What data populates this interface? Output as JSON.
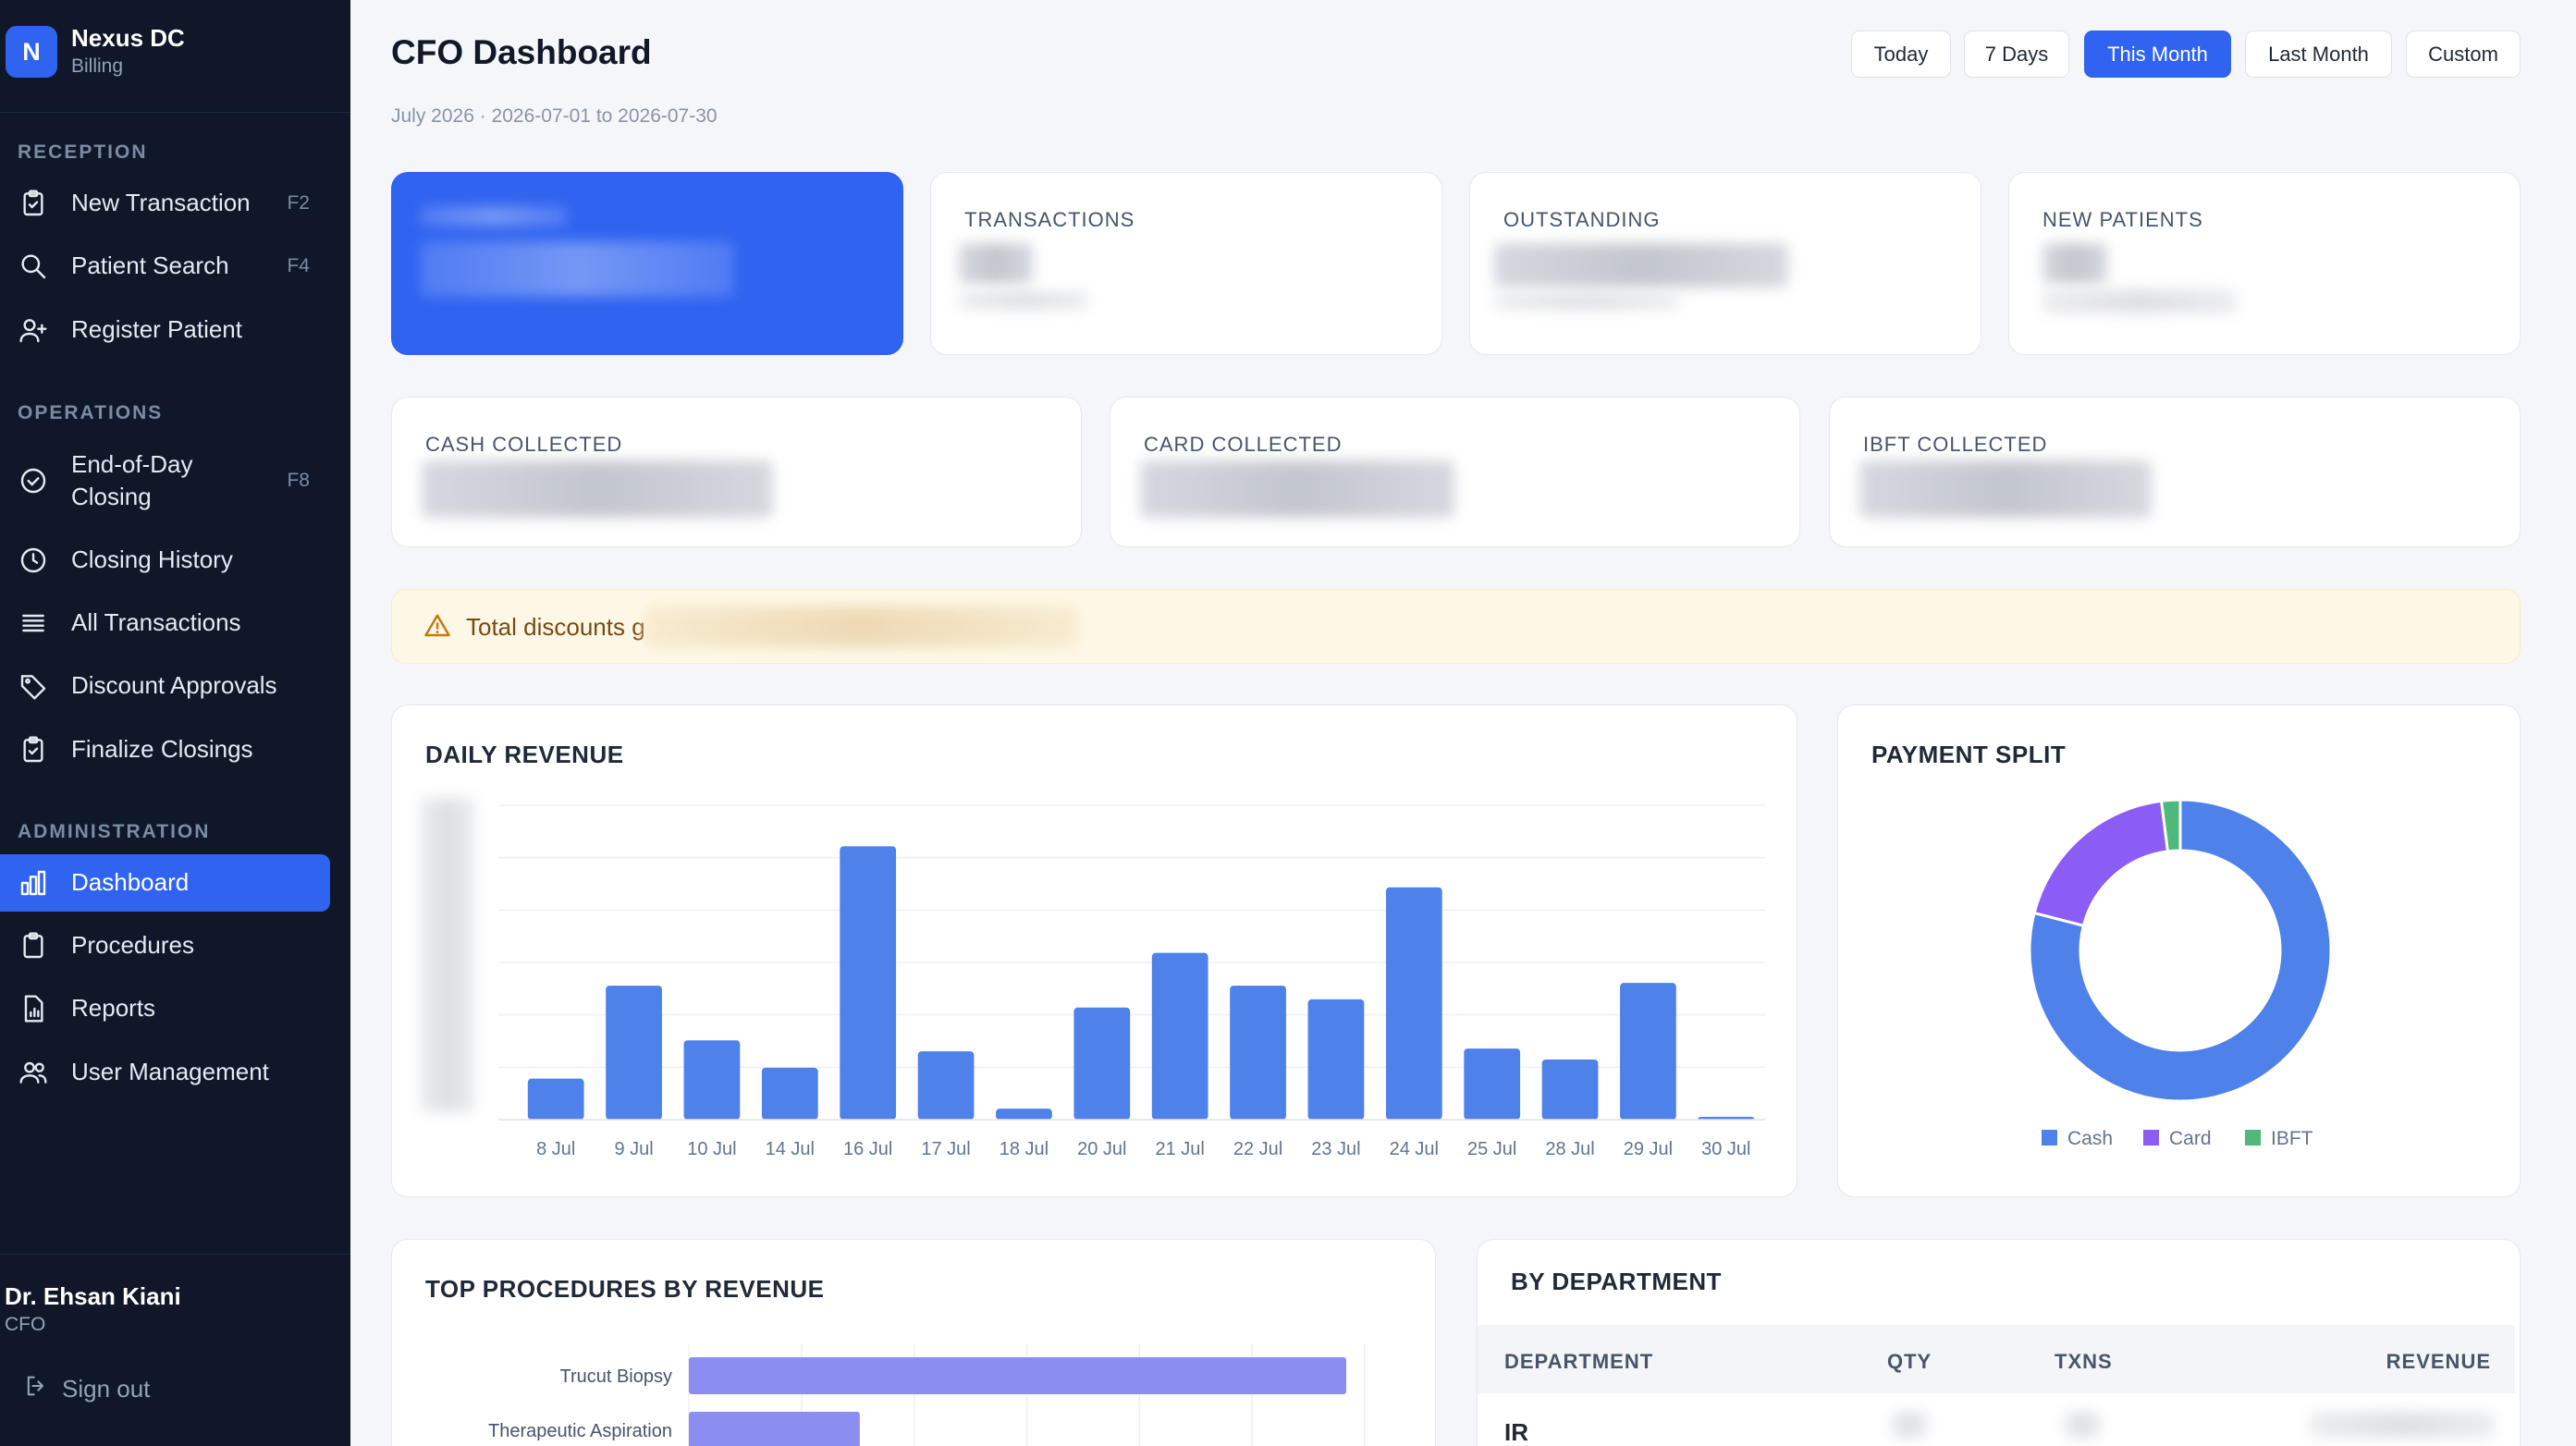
{
  "brand": {
    "logo_letter": "N",
    "name": "Nexus DC",
    "subtitle": "Billing"
  },
  "sidebar": {
    "sections": [
      {
        "label": "RECEPTION"
      },
      {
        "label": "OPERATIONS"
      },
      {
        "label": "ADMINISTRATION"
      }
    ],
    "items": [
      {
        "label": "New Transaction",
        "shortcut": "F2",
        "icon": "clipboard-check-icon"
      },
      {
        "label": "Patient Search",
        "shortcut": "F4",
        "icon": "search-icon"
      },
      {
        "label": "Register Patient",
        "shortcut": "",
        "icon": "user-plus-icon"
      },
      {
        "label": "End-of-Day\nClosing",
        "shortcut": "F8",
        "icon": "check-circle-icon"
      },
      {
        "label": "Closing History",
        "shortcut": "",
        "icon": "clock-icon"
      },
      {
        "label": "All Transactions",
        "shortcut": "",
        "icon": "list-icon"
      },
      {
        "label": "Discount Approvals",
        "shortcut": "",
        "icon": "tag-icon"
      },
      {
        "label": "Finalize Closings",
        "shortcut": "",
        "icon": "clipboard-check-icon"
      },
      {
        "label": "Dashboard",
        "shortcut": "",
        "icon": "bar-chart-icon",
        "active": true
      },
      {
        "label": "Procedures",
        "shortcut": "",
        "icon": "clipboard-icon"
      },
      {
        "label": "Reports",
        "shortcut": "",
        "icon": "file-chart-icon"
      },
      {
        "label": "User Management",
        "shortcut": "",
        "icon": "users-icon"
      }
    ],
    "user": {
      "name": "Dr. Ehsan Kiani",
      "role": "CFO"
    },
    "signout_label": "Sign out"
  },
  "header": {
    "title": "CFO Dashboard",
    "subtitle": "July 2026 · 2026-07-01 to 2026-07-30",
    "ranges": [
      "Today",
      "7 Days",
      "This Month",
      "Last Month",
      "Custom"
    ],
    "active_range": "This Month"
  },
  "kpis": {
    "transactions_label": "TRANSACTIONS",
    "outstanding_label": "OUTSTANDING",
    "new_patients_label": "NEW PATIENTS",
    "cash_label": "CASH COLLECTED",
    "card_label": "CARD COLLECTED",
    "ibft_label": "IBFT COLLECTED"
  },
  "alert": {
    "text": "Total discounts g",
    "icon": "warning-triangle-icon"
  },
  "colors": {
    "accent": "#2f63f0",
    "bar": "#4f81ea",
    "cash": "#4f81ea",
    "card": "#8b5cf6",
    "ibft": "#4fb87a",
    "procedure_bar": "#8b8ef0"
  },
  "daily_revenue": {
    "title": "DAILY REVENUE"
  },
  "payment_split": {
    "title": "PAYMENT SPLIT"
  },
  "top_procedures": {
    "title": "TOP PROCEDURES BY REVENUE"
  },
  "by_department": {
    "title": "BY DEPARTMENT",
    "columns": [
      "DEPARTMENT",
      "QTY",
      "TXNS",
      "REVENUE"
    ],
    "rows": [
      {
        "department": "IR"
      }
    ]
  },
  "chart_data": [
    {
      "type": "bar",
      "title": "DAILY REVENUE",
      "categories": [
        "8 Jul",
        "9 Jul",
        "10 Jul",
        "14 Jul",
        "16 Jul",
        "17 Jul",
        "18 Jul",
        "20 Jul",
        "21 Jul",
        "22 Jul",
        "23 Jul",
        "24 Jul",
        "25 Jul",
        "28 Jul",
        "29 Jul",
        "30 Jul"
      ],
      "values": [
        15,
        49,
        29,
        19,
        100,
        25,
        4,
        41,
        61,
        49,
        44,
        85,
        26,
        22,
        50,
        1
      ],
      "ylabel": "",
      "ylim": [
        0,
        115
      ],
      "grid": true,
      "note_units": "y-axis tick labels are obscured; values relative"
    },
    {
      "type": "pie",
      "title": "PAYMENT SPLIT",
      "labels": [
        "Cash",
        "Card",
        "IBFT"
      ],
      "values": [
        79,
        19,
        2
      ],
      "legend": "bottom"
    },
    {
      "type": "bar",
      "title": "TOP PROCEDURES BY REVENUE",
      "categories": [
        "Trucut Biopsy",
        "Therapeutic Aspiration"
      ],
      "values": [
        100,
        26
      ],
      "orientation": "horizontal"
    }
  ]
}
